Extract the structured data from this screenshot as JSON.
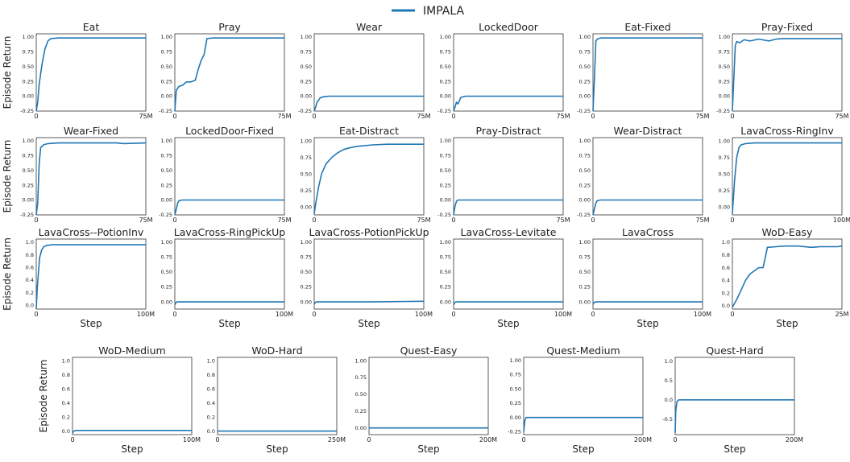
{
  "legend": {
    "label": "IMPALA",
    "color": "#1f77b4"
  },
  "chart_data": [
    {
      "type": "line",
      "title": "Eat",
      "xticks": [
        "0",
        "75M"
      ],
      "yticks": [
        "-0.25",
        "0.00",
        "0.25",
        "0.50",
        "0.75",
        "1.00"
      ],
      "xlim": [
        0,
        75
      ],
      "ylim": [
        -0.25,
        1.05
      ],
      "ylabel": "Episode Return",
      "xlabel": "",
      "series": [
        {
          "name": "IMPALA",
          "x": [
            0,
            1,
            2,
            4,
            6,
            8,
            10,
            15,
            20,
            40,
            60,
            75
          ],
          "y": [
            -0.25,
            -0.1,
            0.2,
            0.55,
            0.8,
            0.93,
            0.97,
            0.98,
            0.98,
            0.98,
            0.98,
            0.98
          ]
        }
      ]
    },
    {
      "type": "line",
      "title": "Pray",
      "xticks": [
        "0",
        "75M"
      ],
      "yticks": [
        "-0.25",
        "0.00",
        "0.25",
        "0.50",
        "0.75",
        "1.00"
      ],
      "xlim": [
        0,
        75
      ],
      "ylim": [
        -0.25,
        1.05
      ],
      "ylabel": "",
      "xlabel": "",
      "series": [
        {
          "name": "IMPALA",
          "x": [
            0,
            1,
            3,
            5,
            8,
            11,
            14,
            16,
            18,
            20,
            22,
            26,
            35,
            50,
            75
          ],
          "y": [
            -0.25,
            0.1,
            0.17,
            0.18,
            0.24,
            0.24,
            0.27,
            0.45,
            0.6,
            0.7,
            0.97,
            0.98,
            0.98,
            0.98,
            0.98
          ]
        }
      ]
    },
    {
      "type": "line",
      "title": "Wear",
      "xticks": [
        "0",
        "75M"
      ],
      "yticks": [
        "-0.25",
        "0.00",
        "0.25",
        "0.50",
        "0.75",
        "1.00"
      ],
      "xlim": [
        0,
        75
      ],
      "ylim": [
        -0.25,
        1.05
      ],
      "ylabel": "",
      "xlabel": "",
      "series": [
        {
          "name": "IMPALA",
          "x": [
            0,
            1,
            2,
            4,
            6,
            10,
            20,
            40,
            75
          ],
          "y": [
            -0.25,
            -0.18,
            -0.1,
            -0.03,
            -0.01,
            0.0,
            0.0,
            0.0,
            0.0
          ]
        }
      ]
    },
    {
      "type": "line",
      "title": "LockedDoor",
      "xticks": [
        "0",
        "75M"
      ],
      "yticks": [
        "-0.25",
        "0.00",
        "0.25",
        "0.50",
        "0.75",
        "1.00"
      ],
      "xlim": [
        0,
        75
      ],
      "ylim": [
        -0.25,
        1.05
      ],
      "ylabel": "",
      "xlabel": "",
      "series": [
        {
          "name": "IMPALA",
          "x": [
            0,
            1,
            2,
            3,
            5,
            8,
            15,
            40,
            75
          ],
          "y": [
            -0.25,
            -0.18,
            -0.1,
            -0.13,
            -0.02,
            0.0,
            0.0,
            0.0,
            0.0
          ]
        }
      ]
    },
    {
      "type": "line",
      "title": "Eat-Fixed",
      "xticks": [
        "0",
        "75M"
      ],
      "yticks": [
        "-0.25",
        "0.00",
        "0.25",
        "0.50",
        "0.75",
        "1.00"
      ],
      "xlim": [
        0,
        75
      ],
      "ylim": [
        -0.25,
        1.05
      ],
      "ylabel": "",
      "xlabel": "",
      "series": [
        {
          "name": "IMPALA",
          "x": [
            0,
            1,
            2,
            3,
            5,
            10,
            40,
            75
          ],
          "y": [
            -0.25,
            0.3,
            0.93,
            0.96,
            0.98,
            0.98,
            0.98,
            0.98
          ]
        }
      ]
    },
    {
      "type": "line",
      "title": "Pray-Fixed",
      "xticks": [
        "0",
        "75M"
      ],
      "yticks": [
        "-0.25",
        "0.00",
        "0.25",
        "0.50",
        "0.75",
        "1.00"
      ],
      "xlim": [
        0,
        75
      ],
      "ylim": [
        -0.25,
        1.05
      ],
      "ylabel": "",
      "xlabel": "",
      "series": [
        {
          "name": "IMPALA",
          "x": [
            0,
            1,
            2,
            3,
            5,
            8,
            12,
            18,
            25,
            30,
            35,
            45,
            60,
            75
          ],
          "y": [
            -0.25,
            0.3,
            0.85,
            0.92,
            0.9,
            0.95,
            0.93,
            0.96,
            0.93,
            0.96,
            0.97,
            0.97,
            0.97,
            0.97
          ]
        }
      ]
    },
    {
      "type": "line",
      "title": "Wear-Fixed",
      "xticks": [
        "0",
        "75M"
      ],
      "yticks": [
        "-0.25",
        "0.00",
        "0.25",
        "0.50",
        "0.75",
        "1.00"
      ],
      "xlim": [
        0,
        75
      ],
      "ylim": [
        -0.25,
        1.05
      ],
      "ylabel": "Episode Return",
      "xlabel": "",
      "series": [
        {
          "name": "IMPALA",
          "x": [
            0,
            1,
            2,
            3,
            5,
            8,
            15,
            25,
            40,
            55,
            60,
            75
          ],
          "y": [
            -0.25,
            -0.05,
            0.6,
            0.88,
            0.93,
            0.95,
            0.96,
            0.96,
            0.96,
            0.96,
            0.95,
            0.96
          ]
        }
      ]
    },
    {
      "type": "line",
      "title": "LockedDoor-Fixed",
      "xticks": [
        "0",
        "75M"
      ],
      "yticks": [
        "-0.25",
        "0.00",
        "0.25",
        "0.50",
        "0.75",
        "1.00"
      ],
      "xlim": [
        0,
        75
      ],
      "ylim": [
        -0.25,
        1.05
      ],
      "ylabel": "",
      "xlabel": "",
      "series": [
        {
          "name": "IMPALA",
          "x": [
            0,
            1,
            2,
            3,
            5,
            10,
            40,
            75
          ],
          "y": [
            -0.25,
            -0.15,
            -0.05,
            -0.01,
            0.0,
            0.0,
            0.0,
            0.0
          ]
        }
      ]
    },
    {
      "type": "line",
      "title": "Eat-Distract",
      "xticks": [
        "0",
        "75M"
      ],
      "yticks": [
        "0.00",
        "0.25",
        "0.50",
        "0.75",
        "1.00"
      ],
      "xlim": [
        0,
        75
      ],
      "ylim": [
        -0.12,
        1.05
      ],
      "ylabel": "",
      "xlabel": "",
      "series": [
        {
          "name": "IMPALA",
          "x": [
            0,
            1,
            3,
            5,
            8,
            12,
            16,
            20,
            25,
            30,
            40,
            50,
            60,
            70,
            75
          ],
          "y": [
            -0.1,
            0.05,
            0.3,
            0.5,
            0.65,
            0.75,
            0.82,
            0.87,
            0.9,
            0.92,
            0.94,
            0.95,
            0.95,
            0.95,
            0.95
          ]
        }
      ]
    },
    {
      "type": "line",
      "title": "Pray-Distract",
      "xticks": [
        "0",
        "75M"
      ],
      "yticks": [
        "-0.25",
        "0.00",
        "0.25",
        "0.50",
        "0.75",
        "1.00"
      ],
      "xlim": [
        0,
        75
      ],
      "ylim": [
        -0.25,
        1.05
      ],
      "ylabel": "",
      "xlabel": "",
      "series": [
        {
          "name": "IMPALA",
          "x": [
            0,
            1,
            2,
            3,
            5,
            10,
            40,
            75
          ],
          "y": [
            -0.25,
            -0.1,
            -0.02,
            0.0,
            0.0,
            0.0,
            0.0,
            0.0
          ]
        }
      ]
    },
    {
      "type": "line",
      "title": "Wear-Distract",
      "xticks": [
        "0",
        "75M"
      ],
      "yticks": [
        "-0.25",
        "0.00",
        "0.25",
        "0.50",
        "0.75",
        "1.00"
      ],
      "xlim": [
        0,
        75
      ],
      "ylim": [
        -0.25,
        1.05
      ],
      "ylabel": "",
      "xlabel": "",
      "series": [
        {
          "name": "IMPALA",
          "x": [
            0,
            1,
            2,
            3,
            5,
            10,
            40,
            75
          ],
          "y": [
            -0.25,
            -0.15,
            -0.05,
            -0.01,
            0.0,
            0.0,
            0.0,
            0.0
          ]
        }
      ]
    },
    {
      "type": "line",
      "title": "LavaCross-RingInv",
      "xticks": [
        "0",
        "100M"
      ],
      "yticks": [
        "0.00",
        "0.25",
        "0.50",
        "0.75",
        "1.00"
      ],
      "xlim": [
        0,
        100
      ],
      "ylim": [
        -0.12,
        1.05
      ],
      "ylabel": "",
      "xlabel": "",
      "series": [
        {
          "name": "IMPALA",
          "x": [
            0,
            2,
            4,
            6,
            8,
            12,
            20,
            40,
            70,
            100
          ],
          "y": [
            -0.1,
            0.4,
            0.75,
            0.9,
            0.94,
            0.96,
            0.97,
            0.97,
            0.97,
            0.97
          ]
        }
      ]
    },
    {
      "type": "line",
      "title": "LavaCross--PotionInv",
      "xticks": [
        "0",
        "100M"
      ],
      "yticks": [
        "0.0",
        "0.2",
        "0.4",
        "0.6",
        "0.8",
        "1.0"
      ],
      "xlim": [
        0,
        100
      ],
      "ylim": [
        -0.06,
        1.05
      ],
      "ylabel": "Episode Return",
      "xlabel": "Step",
      "series": [
        {
          "name": "IMPALA",
          "x": [
            0,
            1,
            3,
            5,
            7,
            10,
            15,
            30,
            60,
            90,
            100
          ],
          "y": [
            -0.05,
            0.3,
            0.75,
            0.88,
            0.93,
            0.95,
            0.96,
            0.96,
            0.96,
            0.96,
            0.96
          ]
        }
      ]
    },
    {
      "type": "line",
      "title": "LavaCross-RingPickUp",
      "xticks": [
        "0",
        "100M"
      ],
      "yticks": [
        "0.00",
        "0.25",
        "0.50",
        "0.75",
        "1.00"
      ],
      "xlim": [
        0,
        100
      ],
      "ylim": [
        -0.12,
        1.05
      ],
      "ylabel": "",
      "xlabel": "Step",
      "series": [
        {
          "name": "IMPALA",
          "x": [
            0,
            1,
            2,
            50,
            100
          ],
          "y": [
            -0.05,
            -0.01,
            0.0,
            0.0,
            0.0
          ]
        }
      ]
    },
    {
      "type": "line",
      "title": "LavaCross-PotionPickUp",
      "xticks": [
        "0",
        "100M"
      ],
      "yticks": [
        "0.00",
        "0.25",
        "0.50",
        "0.75",
        "1.00"
      ],
      "xlim": [
        0,
        100
      ],
      "ylim": [
        -0.12,
        1.05
      ],
      "ylabel": "",
      "xlabel": "Step",
      "series": [
        {
          "name": "IMPALA",
          "x": [
            0,
            1,
            2,
            50,
            100
          ],
          "y": [
            -0.04,
            -0.01,
            0.0,
            0.0,
            0.01
          ]
        }
      ]
    },
    {
      "type": "line",
      "title": "LavaCross-Levitate",
      "xticks": [
        "0",
        "100M"
      ],
      "yticks": [
        "0.00",
        "0.25",
        "0.50",
        "0.75",
        "1.00"
      ],
      "xlim": [
        0,
        100
      ],
      "ylim": [
        -0.12,
        1.05
      ],
      "ylabel": "",
      "xlabel": "Step",
      "series": [
        {
          "name": "IMPALA",
          "x": [
            0,
            1,
            2,
            50,
            100
          ],
          "y": [
            -0.05,
            -0.01,
            0.0,
            0.0,
            0.0
          ]
        }
      ]
    },
    {
      "type": "line",
      "title": "LavaCross",
      "xticks": [
        "0",
        "100M"
      ],
      "yticks": [
        "0.00",
        "0.25",
        "0.50",
        "0.75",
        "1.00"
      ],
      "xlim": [
        0,
        100
      ],
      "ylim": [
        -0.12,
        1.05
      ],
      "ylabel": "",
      "xlabel": "Step",
      "series": [
        {
          "name": "IMPALA",
          "x": [
            0,
            1,
            2,
            50,
            100
          ],
          "y": [
            -0.04,
            -0.01,
            0.0,
            0.0,
            0.0
          ]
        }
      ]
    },
    {
      "type": "line",
      "title": "WoD-Easy",
      "xticks": [
        "0",
        "25M"
      ],
      "yticks": [
        "0.0",
        "0.2",
        "0.4",
        "0.6",
        "0.8",
        "1.0"
      ],
      "xlim": [
        0,
        25
      ],
      "ylim": [
        -0.05,
        1.05
      ],
      "ylabel": "",
      "xlabel": "Step",
      "series": [
        {
          "name": "IMPALA",
          "x": [
            0,
            1,
            2,
            3,
            4,
            5,
            6,
            7,
            8,
            10,
            12,
            15,
            18,
            20,
            22,
            24,
            25
          ],
          "y": [
            -0.02,
            0.1,
            0.25,
            0.4,
            0.5,
            0.55,
            0.6,
            0.6,
            0.92,
            0.93,
            0.94,
            0.94,
            0.92,
            0.93,
            0.93,
            0.93,
            0.94
          ]
        }
      ]
    },
    {
      "type": "line",
      "title": "WoD-Medium",
      "xticks": [
        "0",
        "100M"
      ],
      "yticks": [
        "0.0",
        "0.2",
        "0.4",
        "0.6",
        "0.8",
        "1.0"
      ],
      "xlim": [
        0,
        100
      ],
      "ylim": [
        -0.05,
        1.05
      ],
      "ylabel": "Episode Return",
      "xlabel": "Step",
      "series": [
        {
          "name": "IMPALA",
          "x": [
            0,
            1,
            3,
            10,
            50,
            100
          ],
          "y": [
            -0.03,
            0.0,
            0.01,
            0.01,
            0.01,
            0.01
          ]
        }
      ]
    },
    {
      "type": "line",
      "title": "WoD-Hard",
      "xticks": [
        "0",
        "250M"
      ],
      "yticks": [
        "0.0",
        "0.2",
        "0.4",
        "0.6",
        "0.8",
        "1.0"
      ],
      "xlim": [
        0,
        250
      ],
      "ylim": [
        -0.05,
        1.05
      ],
      "ylabel": "",
      "xlabel": "Step",
      "series": [
        {
          "name": "IMPALA",
          "x": [
            0,
            3,
            100,
            250
          ],
          "y": [
            0.0,
            0.0,
            0.0,
            0.0
          ]
        }
      ]
    },
    {
      "type": "line",
      "title": "Quest-Easy",
      "xticks": [
        "0",
        "200M"
      ],
      "yticks": [
        "0.00",
        "0.25",
        "0.50",
        "0.75",
        "1.00"
      ],
      "xlim": [
        0,
        200
      ],
      "ylim": [
        -0.1,
        1.05
      ],
      "ylabel": "",
      "xlabel": "Step",
      "series": [
        {
          "name": "IMPALA",
          "x": [
            0,
            2,
            100,
            200
          ],
          "y": [
            0.0,
            0.0,
            0.0,
            0.0
          ]
        }
      ]
    },
    {
      "type": "line",
      "title": "Quest-Medium",
      "xticks": [
        "0",
        "200M"
      ],
      "yticks": [
        "-0.25",
        "0.00",
        "0.25",
        "0.50",
        "0.75",
        "1.00"
      ],
      "xlim": [
        0,
        200
      ],
      "ylim": [
        -0.3,
        1.05
      ],
      "ylabel": "",
      "xlabel": "Step",
      "series": [
        {
          "name": "IMPALA",
          "x": [
            0,
            2,
            4,
            100,
            200
          ],
          "y": [
            -0.25,
            -0.05,
            0.0,
            0.0,
            0.0
          ]
        }
      ]
    },
    {
      "type": "line",
      "title": "Quest-Hard",
      "xticks": [
        "0",
        "200M"
      ],
      "yticks": [
        "-0.5",
        "0.0",
        "0.5",
        "1.0"
      ],
      "xlim": [
        0,
        200
      ],
      "ylim": [
        -0.9,
        1.1
      ],
      "ylabel": "",
      "xlabel": "Step",
      "series": [
        {
          "name": "IMPALA",
          "x": [
            0,
            1,
            3,
            6,
            100,
            200
          ],
          "y": [
            -0.85,
            -0.3,
            -0.05,
            0.0,
            0.0,
            0.0
          ]
        }
      ]
    }
  ]
}
